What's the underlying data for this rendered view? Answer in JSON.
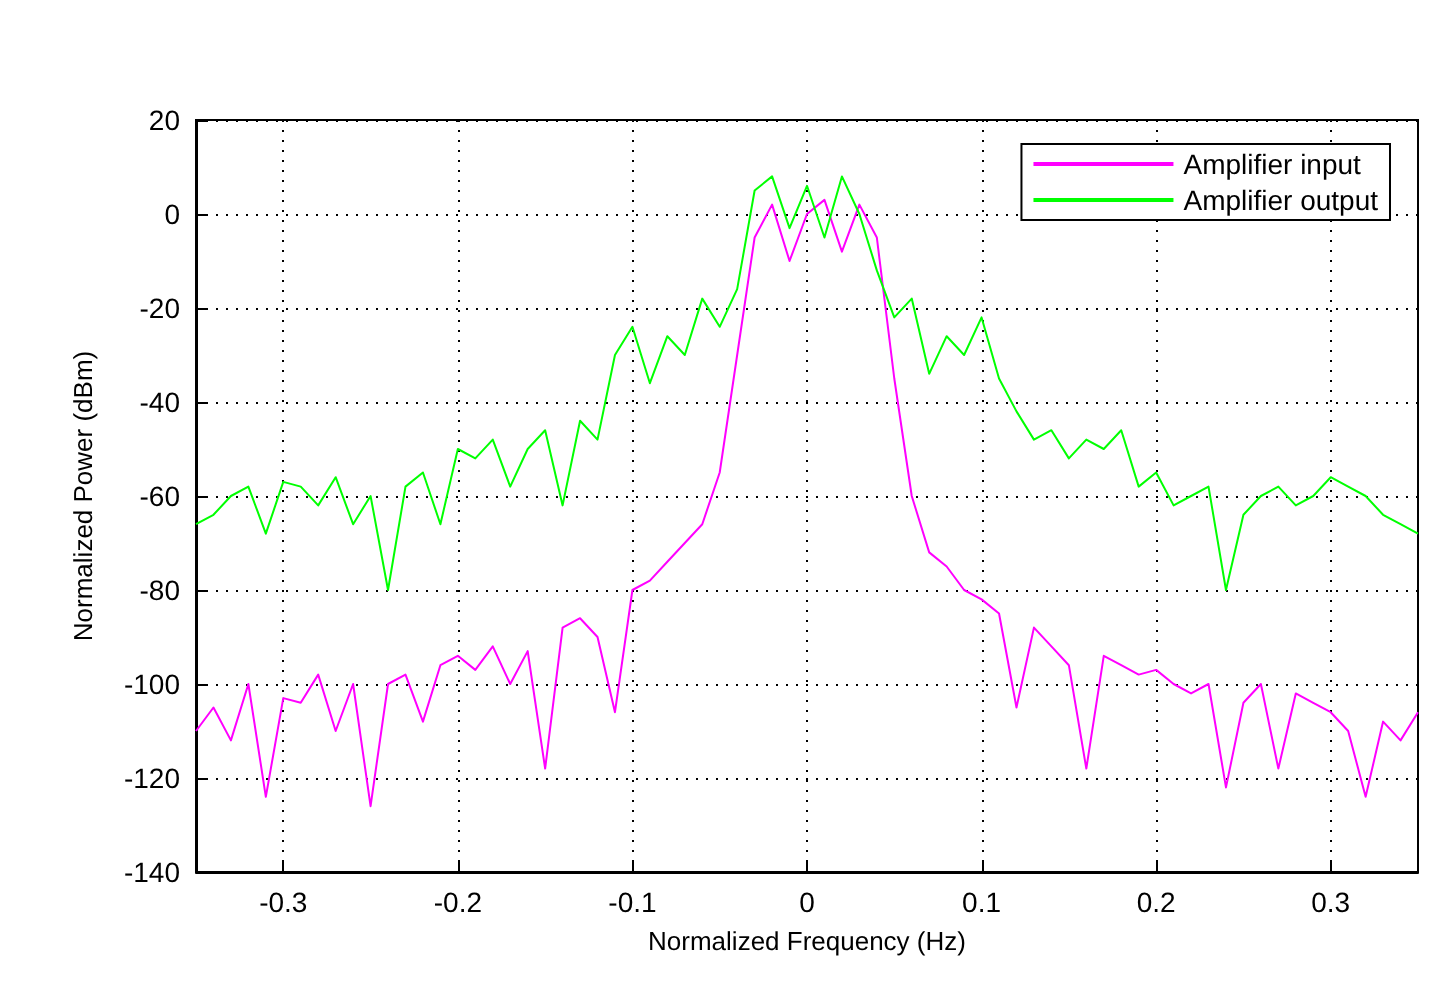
{
  "chart_data": {
    "type": "line",
    "xlabel": "Normalized Frequency (Hz)",
    "ylabel": "Normalized Power (dBm)",
    "x": [
      -0.35,
      -0.34,
      -0.33,
      -0.32,
      -0.31,
      -0.3,
      -0.29,
      -0.28,
      -0.27,
      -0.26,
      -0.25,
      -0.24,
      -0.23,
      -0.22,
      -0.21,
      -0.2,
      -0.19,
      -0.18,
      -0.17,
      -0.16,
      -0.15,
      -0.14,
      -0.13,
      -0.12,
      -0.11,
      -0.1,
      -0.09,
      -0.08,
      -0.07,
      -0.06,
      -0.05,
      -0.04,
      -0.03,
      -0.02,
      -0.01,
      0,
      0.01,
      0.02,
      0.03,
      0.04,
      0.05,
      0.06,
      0.07,
      0.08,
      0.09,
      0.1,
      0.11,
      0.12,
      0.13,
      0.14,
      0.15,
      0.16,
      0.17,
      0.18,
      0.19,
      0.2,
      0.21,
      0.22,
      0.23,
      0.24,
      0.25,
      0.26,
      0.27,
      0.28,
      0.29,
      0.3,
      0.31,
      0.32,
      0.33,
      0.34,
      0.35
    ],
    "series": [
      {
        "name": "Amplifier input",
        "color": "#ff00ff",
        "values": [
          -110,
          -105,
          -112,
          -100,
          -124,
          -103,
          -104,
          -98,
          -110,
          -100,
          -126,
          -100,
          -98,
          -108,
          -96,
          -94,
          -97,
          -92,
          -100,
          -93,
          -118,
          -88,
          -86,
          -90,
          -106,
          -80,
          -78,
          -74,
          -70,
          -66,
          -55,
          -30,
          -5,
          2,
          -10,
          0,
          3,
          -8,
          2,
          -5,
          -35,
          -60,
          -72,
          -75,
          -80,
          -82,
          -85,
          -105,
          -88,
          -92,
          -96,
          -118,
          -94,
          -96,
          -98,
          -97,
          -100,
          -102,
          -100,
          -122,
          -104,
          -100,
          -118,
          -102,
          -104,
          -106,
          -110,
          -124,
          -108,
          -112,
          -106
        ]
      },
      {
        "name": "Amplifier output",
        "color": "#00ff00",
        "values": [
          -66,
          -64,
          -60,
          -58,
          -68,
          -57,
          -58,
          -62,
          -56,
          -66,
          -60,
          -80,
          -58,
          -55,
          -66,
          -50,
          -52,
          -48,
          -58,
          -50,
          -46,
          -62,
          -44,
          -48,
          -30,
          -24,
          -36,
          -26,
          -30,
          -18,
          -24,
          -16,
          5,
          8,
          -3,
          6,
          -5,
          8,
          0,
          -12,
          -22,
          -18,
          -34,
          -26,
          -30,
          -22,
          -35,
          -42,
          -48,
          -46,
          -52,
          -48,
          -50,
          -46,
          -58,
          -55,
          -62,
          -60,
          -58,
          -80,
          -64,
          -60,
          -58,
          -62,
          -60,
          -56,
          -58,
          -60,
          -64,
          -66,
          -68
        ]
      }
    ],
    "xlim": [
      -0.35,
      0.35
    ],
    "xticks": [
      -0.3,
      -0.2,
      -0.1,
      0,
      0.1,
      0.2,
      0.3
    ],
    "ylim": [
      -140,
      20
    ],
    "yticks": [
      -140,
      -120,
      -100,
      -80,
      -60,
      -40,
      -20,
      0,
      20
    ],
    "grid": true,
    "legend": "top right"
  }
}
